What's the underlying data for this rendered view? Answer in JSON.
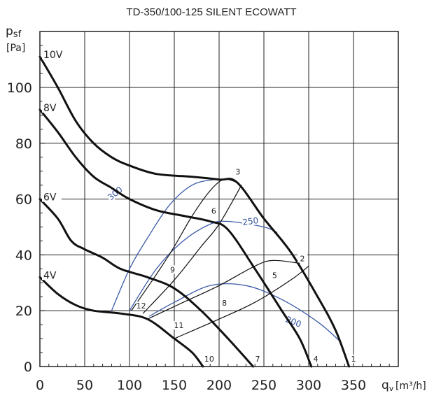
{
  "chart_data": {
    "type": "line",
    "title": "TD-350/100-125 SILENT ECOWATT",
    "ylabel_main": "p",
    "ylabel_sub": "sf",
    "yunit": "[Pa]",
    "xlabel_main": "q",
    "xlabel_sub": "v",
    "xunit": "[m³/h]",
    "xlim": [
      0,
      400
    ],
    "ylim": [
      0,
      120
    ],
    "x_ticks": [
      0,
      50,
      100,
      150,
      200,
      250,
      300,
      350
    ],
    "y_ticks": [
      0,
      20,
      40,
      60,
      80,
      100
    ],
    "grid": true,
    "fan_curves": [
      {
        "name": "10V",
        "points": [
          [
            0,
            111
          ],
          [
            20,
            100
          ],
          [
            40,
            88
          ],
          [
            60,
            80
          ],
          [
            80,
            75
          ],
          [
            100,
            72
          ],
          [
            130,
            69
          ],
          [
            170,
            68
          ],
          [
            200,
            67
          ],
          [
            220,
            66
          ],
          [
            250,
            53
          ],
          [
            280,
            41
          ],
          [
            310,
            25
          ],
          [
            330,
            13
          ],
          [
            345,
            0
          ]
        ]
      },
      {
        "name": "8V",
        "points": [
          [
            0,
            92
          ],
          [
            20,
            84
          ],
          [
            40,
            75
          ],
          [
            60,
            68
          ],
          [
            80,
            64
          ],
          [
            100,
            60
          ],
          [
            130,
            56
          ],
          [
            160,
            54
          ],
          [
            190,
            52
          ],
          [
            210,
            49
          ],
          [
            240,
            35
          ],
          [
            270,
            20
          ],
          [
            290,
            10
          ],
          [
            303,
            0
          ]
        ]
      },
      {
        "name": "6V",
        "points": [
          [
            0,
            60
          ],
          [
            20,
            53
          ],
          [
            35,
            45
          ],
          [
            50,
            42
          ],
          [
            70,
            39
          ],
          [
            90,
            35
          ],
          [
            120,
            32
          ],
          [
            150,
            28
          ],
          [
            180,
            20
          ],
          [
            210,
            10
          ],
          [
            238,
            0
          ]
        ]
      },
      {
        "name": "4V",
        "points": [
          [
            0,
            32
          ],
          [
            20,
            26
          ],
          [
            40,
            22
          ],
          [
            60,
            20
          ],
          [
            90,
            19
          ],
          [
            120,
            17
          ],
          [
            150,
            10
          ],
          [
            170,
            5
          ],
          [
            182,
            0
          ]
        ]
      }
    ],
    "system_curves": [
      {
        "points": [
          [
            102,
            20
          ],
          [
            130,
            33
          ],
          [
            150,
            43
          ],
          [
            170,
            54
          ],
          [
            190,
            63
          ],
          [
            205,
            67
          ],
          [
            220,
            66
          ]
        ]
      },
      {
        "points": [
          [
            115,
            19
          ],
          [
            150,
            31
          ],
          [
            180,
            43
          ],
          [
            200,
            51
          ],
          [
            225,
            65
          ]
        ]
      },
      {
        "points": [
          [
            120,
            17
          ],
          [
            160,
            23
          ],
          [
            200,
            29
          ],
          [
            240,
            36
          ],
          [
            260,
            38
          ],
          [
            290,
            37
          ]
        ]
      },
      {
        "points": [
          [
            150,
            10
          ],
          [
            200,
            17
          ],
          [
            240,
            23
          ],
          [
            280,
            31
          ],
          [
            300,
            36
          ]
        ]
      }
    ],
    "rpm_curves": [
      {
        "name": "300",
        "points": [
          [
            80,
            20
          ],
          [
            100,
            35
          ],
          [
            120,
            46
          ],
          [
            145,
            58
          ],
          [
            170,
            65
          ],
          [
            195,
            67
          ],
          [
            215,
            67
          ]
        ]
      },
      {
        "name": "250",
        "points": [
          [
            100,
            20
          ],
          [
            130,
            35
          ],
          [
            160,
            45
          ],
          [
            190,
            51
          ],
          [
            210,
            52
          ],
          [
            250,
            50
          ],
          [
            265,
            48
          ]
        ]
      },
      {
        "name": "200",
        "points": [
          [
            122,
            18
          ],
          [
            150,
            23
          ],
          [
            190,
            29
          ],
          [
            230,
            29
          ],
          [
            270,
            24
          ],
          [
            310,
            16
          ],
          [
            335,
            9
          ]
        ]
      }
    ],
    "point_labels": [
      {
        "name": "1",
        "x": 350,
        "y": 2
      },
      {
        "name": "2",
        "x": 293,
        "y": 38
      },
      {
        "name": "3",
        "x": 221,
        "y": 69
      },
      {
        "name": "4",
        "x": 308,
        "y": 2
      },
      {
        "name": "5",
        "x": 262,
        "y": 32
      },
      {
        "name": "6",
        "x": 194,
        "y": 55
      },
      {
        "name": "7",
        "x": 243,
        "y": 2
      },
      {
        "name": "8",
        "x": 206,
        "y": 22
      },
      {
        "name": "9",
        "x": 148,
        "y": 34
      },
      {
        "name": "10",
        "x": 189,
        "y": 2
      },
      {
        "name": "11",
        "x": 155,
        "y": 14
      },
      {
        "name": "12",
        "x": 113,
        "y": 21
      }
    ]
  }
}
